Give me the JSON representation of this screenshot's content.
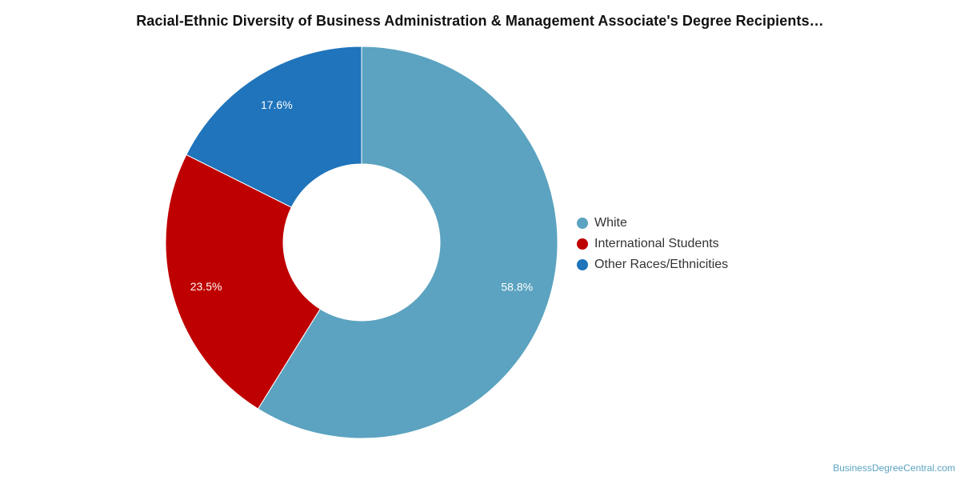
{
  "chart_data": {
    "type": "pie",
    "title": "Racial-Ethnic Diversity of Business Administration & Management Associate's Degree Recipients…",
    "donut": true,
    "legend_position": "right",
    "slices": [
      {
        "label": "White",
        "value": 58.8,
        "display": "58.8%",
        "color": "#5ba3c0"
      },
      {
        "label": "International Students",
        "value": 23.5,
        "display": "23.5%",
        "color": "#bf0000"
      },
      {
        "label": "Other Races/Ethnicities",
        "value": 17.6,
        "display": "17.6%",
        "color": "#1f74bb"
      }
    ]
  },
  "footer": {
    "watermark": "BusinessDegreeCentral.com"
  }
}
